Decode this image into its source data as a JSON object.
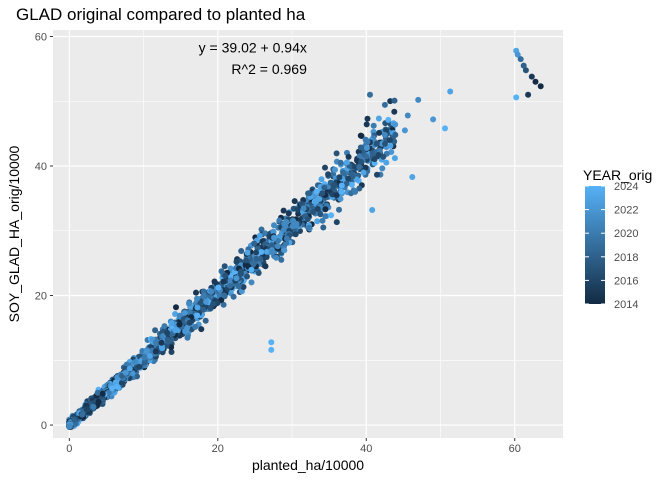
{
  "chart_data": {
    "type": "scatter",
    "title": "GLAD original compared to planted ha",
    "xlabel": "planted_ha/10000",
    "ylabel": "SOY_GLAD_HA_orig/10000",
    "xlim": [
      -2.2,
      66.5
    ],
    "ylim": [
      -2,
      61
    ],
    "x_ticks": [
      0,
      20,
      40,
      60
    ],
    "y_ticks": [
      0,
      20,
      40,
      60
    ],
    "grid": true,
    "annotations": [
      {
        "text": "y = 39.02 + 0.94x",
        "x": 32,
        "y": 57.5
      },
      {
        "text": "R^2 = 0.969",
        "x": 32,
        "y": 54.2
      }
    ],
    "color_scale": {
      "title": "YEAR_orig",
      "min": 2014,
      "max": 2024,
      "low_color": "#132b43",
      "high_color": "#56b1f7",
      "ticks": [
        2014,
        2016,
        2018,
        2020,
        2022,
        2024
      ],
      "placement": "right"
    },
    "notable_points": [
      {
        "x": 60.2,
        "y": 57.8,
        "year": 2023
      },
      {
        "x": 60.4,
        "y": 57.2,
        "year": 2022
      },
      {
        "x": 60.8,
        "y": 56.5,
        "year": 2019
      },
      {
        "x": 61.2,
        "y": 55.5,
        "year": 2018
      },
      {
        "x": 61.5,
        "y": 54.8,
        "year": 2017
      },
      {
        "x": 62.3,
        "y": 53.8,
        "year": 2015
      },
      {
        "x": 62.8,
        "y": 53.0,
        "year": 2014
      },
      {
        "x": 63.5,
        "y": 52.3,
        "year": 2014
      },
      {
        "x": 61.8,
        "y": 51.0,
        "year": 2015
      },
      {
        "x": 60.2,
        "y": 50.6,
        "year": 2024
      },
      {
        "x": 51.3,
        "y": 51.5,
        "year": 2023
      },
      {
        "x": 47.0,
        "y": 50.2,
        "year": 2021
      },
      {
        "x": 43.8,
        "y": 50.1,
        "year": 2018
      },
      {
        "x": 49.0,
        "y": 47.2,
        "year": 2022
      },
      {
        "x": 50.6,
        "y": 45.8,
        "year": 2024
      },
      {
        "x": 45.6,
        "y": 47.8,
        "year": 2021
      },
      {
        "x": 45.2,
        "y": 45.5,
        "year": 2022
      },
      {
        "x": 46.2,
        "y": 38.3,
        "year": 2023
      },
      {
        "x": 40.5,
        "y": 51.0,
        "year": 2019
      },
      {
        "x": 41.0,
        "y": 46.2,
        "year": 2020
      },
      {
        "x": 42.5,
        "y": 44.8,
        "year": 2021
      },
      {
        "x": 27.2,
        "y": 12.8,
        "year": 2024
      },
      {
        "x": 27.2,
        "y": 11.6,
        "year": 2024
      },
      {
        "x": 40.0,
        "y": 41.5,
        "year": 2019
      },
      {
        "x": 38.5,
        "y": 36.0,
        "year": 2020
      },
      {
        "x": 40.8,
        "y": 33.2,
        "year": 2023
      }
    ]
  }
}
